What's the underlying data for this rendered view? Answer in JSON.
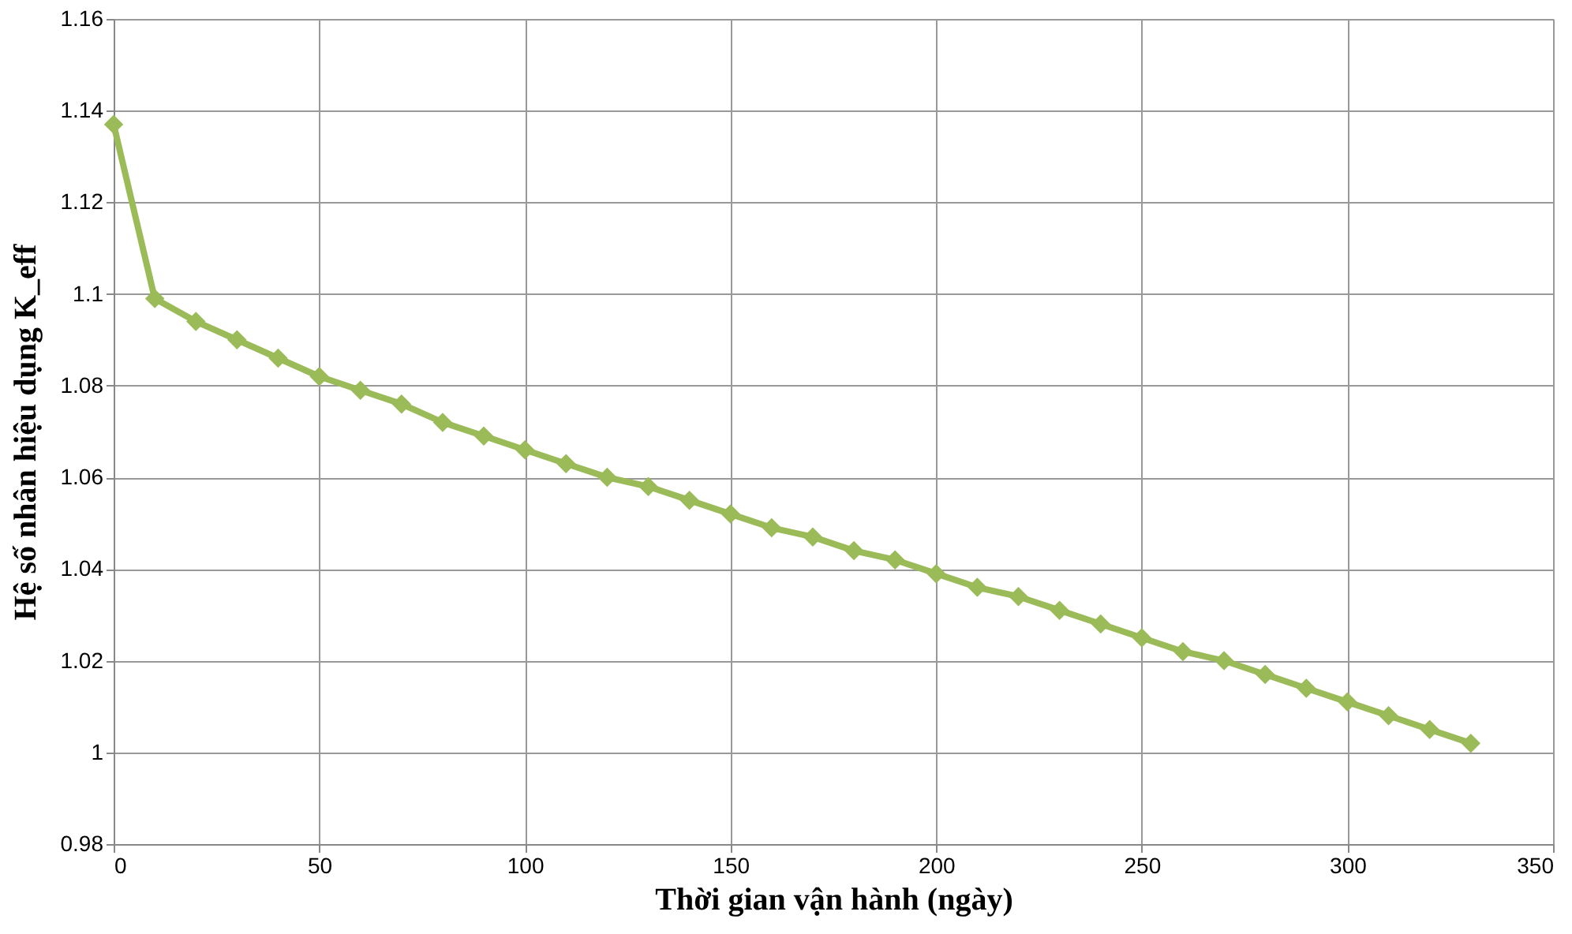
{
  "chart_data": {
    "type": "line",
    "xlabel": "Thời gian vận hành (ngày)",
    "ylabel": "Hệ số nhân hiệu dụng K_eff",
    "x": [
      0,
      10,
      20,
      30,
      40,
      50,
      60,
      70,
      80,
      90,
      100,
      110,
      120,
      130,
      140,
      150,
      160,
      170,
      180,
      190,
      200,
      210,
      220,
      230,
      240,
      250,
      260,
      270,
      280,
      290,
      300,
      310,
      320,
      330
    ],
    "series": [
      {
        "color": "#9bbb59",
        "values": [
          1.137,
          1.099,
          1.094,
          1.09,
          1.086,
          1.082,
          1.079,
          1.076,
          1.072,
          1.069,
          1.066,
          1.063,
          1.06,
          1.058,
          1.055,
          1.052,
          1.049,
          1.047,
          1.044,
          1.042,
          1.039,
          1.036,
          1.034,
          1.031,
          1.028,
          1.025,
          1.022,
          1.02,
          1.017,
          1.014,
          1.011,
          1.008,
          1.005,
          1.002
        ]
      }
    ],
    "xlim": [
      0,
      350
    ],
    "xticks": [
      0,
      50,
      100,
      150,
      200,
      250,
      300,
      350
    ],
    "ylim": [
      0.98,
      1.16
    ],
    "yticks": [
      0.98,
      1,
      1.02,
      1.04,
      1.06,
      1.08,
      1.1,
      1.12,
      1.14,
      1.16
    ],
    "grid": true,
    "marker": "diamond",
    "line_style": "solid"
  }
}
